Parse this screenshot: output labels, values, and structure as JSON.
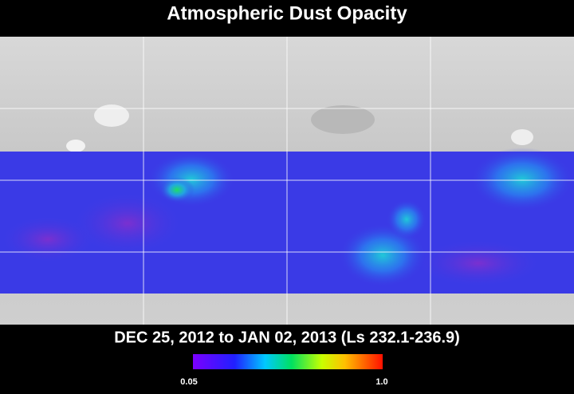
{
  "header": {
    "title": "Atmospheric Dust Opacity"
  },
  "caption": {
    "date_range": "DEC 25, 2012 to JAN 02, 2013 (Ls 232.1-236.9)"
  },
  "colorbar": {
    "min_label": "0.05",
    "max_label": "1.0"
  }
}
